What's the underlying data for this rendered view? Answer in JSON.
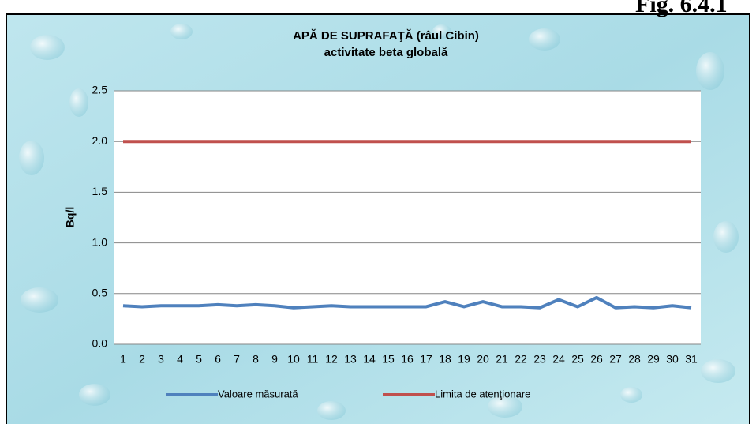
{
  "figure_label": "Fig. 6.4.1",
  "chart_data": {
    "type": "line",
    "title": "APĂ DE SUPRAFAŢĂ (râul Cibin)",
    "subtitle": "activitate beta globală",
    "y_label": "Bq/l",
    "categories": [
      "1",
      "2",
      "3",
      "4",
      "5",
      "6",
      "7",
      "8",
      "9",
      "10",
      "11",
      "12",
      "13",
      "14",
      "15",
      "16",
      "17",
      "18",
      "19",
      "20",
      "21",
      "22",
      "23",
      "24",
      "25",
      "26",
      "27",
      "28",
      "29",
      "30",
      "31"
    ],
    "series": [
      {
        "name": "Valoare măsurată",
        "color": "#4f81bd",
        "values": [
          0.38,
          0.37,
          0.38,
          0.38,
          0.38,
          0.39,
          0.38,
          0.39,
          0.38,
          0.36,
          0.37,
          0.38,
          0.37,
          0.37,
          0.37,
          0.37,
          0.37,
          0.42,
          0.37,
          0.42,
          0.37,
          0.37,
          0.36,
          0.44,
          0.37,
          0.46,
          0.36,
          0.37,
          0.36,
          0.38,
          0.36
        ]
      },
      {
        "name": "Limita de atenţionare",
        "color": "#c0504d",
        "values": [
          2,
          2,
          2,
          2,
          2,
          2,
          2,
          2,
          2,
          2,
          2,
          2,
          2,
          2,
          2,
          2,
          2,
          2,
          2,
          2,
          2,
          2,
          2,
          2,
          2,
          2,
          2,
          2,
          2,
          2,
          2
        ]
      }
    ],
    "ylim": [
      0,
      2.5
    ],
    "yticks": [
      {
        "value": 0,
        "label": "0.0"
      },
      0.5,
      {
        "value": 1,
        "label": "1.0"
      },
      1.5,
      {
        "value": 2,
        "label": "2.0"
      },
      2.5
    ],
    "grid": true,
    "legend": "bottom"
  }
}
